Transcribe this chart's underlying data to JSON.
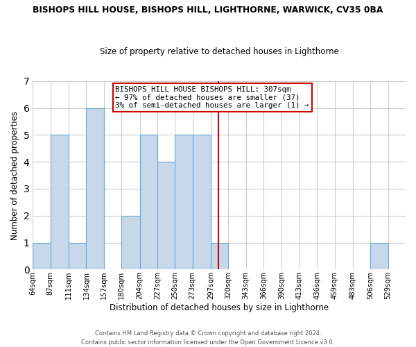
{
  "title": "BISHOPS HILL HOUSE, BISHOPS HILL, LIGHTHORNE, WARWICK, CV35 0BA",
  "subtitle": "Size of property relative to detached houses in Lighthorne",
  "xlabel": "Distribution of detached houses by size in Lighthorne",
  "ylabel": "Number of detached properties",
  "bar_color": "#c8d8eb",
  "bar_edge_color": "#6aaad4",
  "bar_heights": [
    1,
    5,
    1,
    6,
    0,
    2,
    5,
    4,
    5,
    5,
    1,
    0,
    0,
    0,
    0,
    0,
    0,
    0,
    0,
    1,
    0
  ],
  "bin_edges": [
    64,
    87,
    111,
    134,
    157,
    180,
    204,
    227,
    250,
    273,
    297,
    320,
    343,
    366,
    390,
    413,
    436,
    459,
    483,
    506,
    529,
    552
  ],
  "tick_labels": [
    "64sqm",
    "87sqm",
    "111sqm",
    "134sqm",
    "157sqm",
    "180sqm",
    "204sqm",
    "227sqm",
    "250sqm",
    "273sqm",
    "297sqm",
    "320sqm",
    "343sqm",
    "366sqm",
    "390sqm",
    "413sqm",
    "436sqm",
    "459sqm",
    "483sqm",
    "506sqm",
    "529sqm"
  ],
  "red_line_x": 307,
  "annotation_line1": "BISHOPS HILL HOUSE BISHOPS HILL: 307sqm",
  "annotation_line2": "← 97% of detached houses are smaller (37)",
  "annotation_line3": "3% of semi-detached houses are larger (1) →",
  "annotation_box_color": "#ffffff",
  "annotation_border_color": "#cc0000",
  "ylim": [
    0,
    7
  ],
  "yticks": [
    0,
    1,
    2,
    3,
    4,
    5,
    6,
    7
  ],
  "footer_line1": "Contains HM Land Registry data © Crown copyright and database right 2024.",
  "footer_line2": "Contains public sector information licensed under the Open Government Licence v3.0.",
  "background_color": "#ffffff",
  "grid_color": "#cccccc"
}
